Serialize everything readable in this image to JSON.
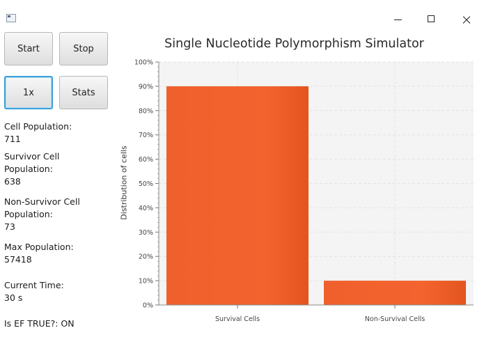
{
  "window": {
    "icon": "app-window-icon",
    "controls": [
      "minimize-icon",
      "maximize-icon",
      "close-icon"
    ]
  },
  "controls": {
    "start_label": "Start",
    "stop_label": "Stop",
    "speed_label": "1x",
    "stats_label": "Stats"
  },
  "info": {
    "cell_population_label": "Cell Population:",
    "cell_population_value": "711",
    "survivor_label_line1": "Survivor Cell",
    "survivor_label_line2": "Population:",
    "survivor_value": "638",
    "nonsurvivor_label_line1": "Non-Survivor Cell",
    "nonsurvivor_label_line2": "Population:",
    "nonsurvivor_value": "73",
    "max_population_label": "Max Population:",
    "max_population_value": "57418",
    "current_time_label": "Current Time:",
    "current_time_value": "30 s",
    "ef_status": "Is EF TRUE?: ON"
  },
  "chart_data": {
    "type": "bar",
    "title": "Single Nucleotide Polymorphism Simulator",
    "xlabel": "",
    "ylabel": "Distribution of cells",
    "categories": [
      "Survival Cells",
      "Non-Survival Cells"
    ],
    "values": [
      90,
      10
    ],
    "ylim": [
      0,
      100
    ],
    "yticks": [
      "0%",
      "10%",
      "20%",
      "30%",
      "40%",
      "50%",
      "60%",
      "70%",
      "80%",
      "90%",
      "100%"
    ],
    "grid": true,
    "bar_color": "#f0602c"
  }
}
